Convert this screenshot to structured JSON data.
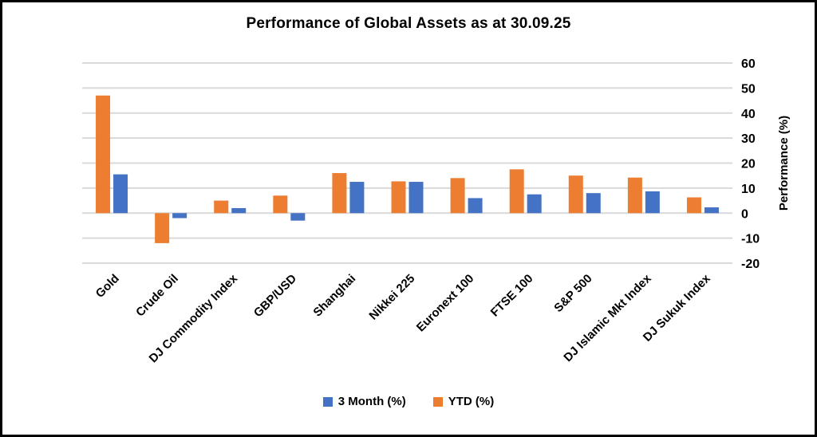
{
  "title": "Performance of Global Assets as at 30.09.25",
  "colors": {
    "grid": "#D9D9D9",
    "text": "#000000",
    "background": "#FFFFFF",
    "frame_border": "#000000",
    "series_blue": "#4472C4",
    "series_orange": "#ED7D31"
  },
  "chart_data": {
    "type": "bar",
    "title": "Performance of Global Assets as at 30.09.25",
    "categories": [
      "Gold",
      "Crude Oil",
      "DJ Commodity Index",
      "GBP/USD",
      "Shanghai",
      "Nikkei 225",
      "Euronext 100",
      "FTSE 100",
      "S&P 500",
      "DJ Islamic Mkt Index",
      "DJ Sukuk Index"
    ],
    "series": [
      {
        "name": "3 Month (%)",
        "color": "#4472C4",
        "values": [
          15.5,
          -2,
          2,
          -3,
          12.5,
          12.5,
          6,
          7.5,
          8,
          8.7,
          2.3
        ]
      },
      {
        "name": "YTD (%)",
        "color": "#ED7D31",
        "values": [
          47,
          -12,
          5,
          7,
          16,
          12.7,
          14,
          17.5,
          15,
          14.2,
          6.3
        ]
      }
    ],
    "xlabel": "",
    "ylabel": "Performance (%)",
    "ylim": [
      -20,
      60
    ],
    "yticks": [
      60,
      50,
      40,
      30,
      20,
      10,
      0,
      -10,
      -20
    ],
    "grid": true,
    "legend_position": "bottom",
    "bar_draw_order": [
      1,
      0
    ]
  }
}
